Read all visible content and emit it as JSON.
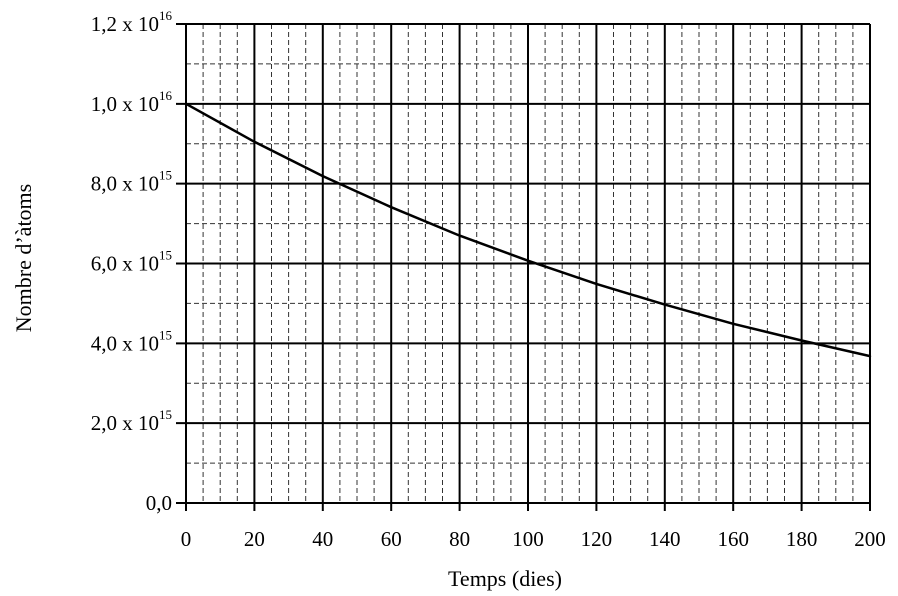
{
  "chart_data": {
    "type": "line",
    "title": "",
    "xlabel": "Temps (dies)",
    "ylabel": "Nombre d’àtoms",
    "xlim": [
      0,
      200
    ],
    "ylim": [
      0,
      1.2e+16
    ],
    "grid": true,
    "x_ticks": [
      "0",
      "20",
      "40",
      "60",
      "80",
      "100",
      "120",
      "140",
      "160",
      "180",
      "200"
    ],
    "y_ticks": [
      {
        "value": 0,
        "mantissa": "0,0",
        "times": "",
        "base": "",
        "exp": ""
      },
      {
        "value": 2000000000000000.0,
        "mantissa": "2,0",
        "times": "x",
        "base": "10",
        "exp": "15"
      },
      {
        "value": 4000000000000000.0,
        "mantissa": "4,0",
        "times": "x",
        "base": "10",
        "exp": "15"
      },
      {
        "value": 6000000000000000.0,
        "mantissa": "6,0",
        "times": "x",
        "base": "10",
        "exp": "15"
      },
      {
        "value": 8000000000000000.0,
        "mantissa": "8,0",
        "times": "x",
        "base": "10",
        "exp": "15"
      },
      {
        "value": 1e+16,
        "mantissa": "1,0",
        "times": "x",
        "base": "10",
        "exp": "16"
      },
      {
        "value": 1.2e+16,
        "mantissa": "1,2",
        "times": "x",
        "base": "10",
        "exp": "16"
      }
    ],
    "series": [
      {
        "x": [
          0,
          20,
          40,
          60,
          80,
          100,
          120,
          140,
          160,
          180,
          200
        ],
        "y": [
          1e+16,
          9050000000000000.0,
          8190000000000000.0,
          7410000000000000.0,
          6700000000000000.0,
          6070000000000000.0,
          5490000000000000.0,
          4970000000000000.0,
          4490000000000000.0,
          4070000000000000.0,
          3680000000000000.0
        ]
      }
    ]
  }
}
